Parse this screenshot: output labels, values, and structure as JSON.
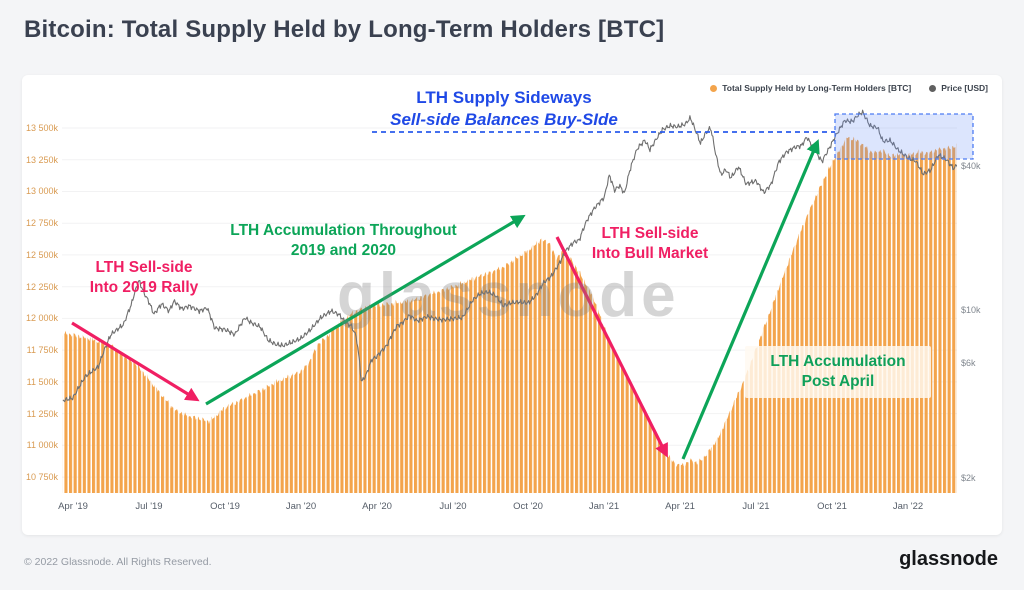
{
  "page": {
    "title": "Bitcoin: Total Supply Held by Long-Term Holders [BTC]",
    "footer_copyright": "© 2022 Glassnode. All Rights Reserved.",
    "footer_brand": "glassnode",
    "watermark": "glassnode"
  },
  "legend": {
    "items": [
      {
        "label": "Total Supply Held by Long-Term Holders [BTC]",
        "color": "#F3A44C"
      },
      {
        "label": "Price [USD]",
        "color": "#606060"
      }
    ]
  },
  "annotations": {
    "sideways_title": "LTH Supply Sideways",
    "sideways_sub": "Sell-side Balances Buy-SIde",
    "sell_2019_line1": "LTH Sell-side",
    "sell_2019_line2": "Into 2019 Rally",
    "accum_2019_line1": "LTH Accumulation Throughout",
    "accum_2019_line2": "2019 and 2020",
    "sell_bull_line1": "LTH Sell-side",
    "sell_bull_line2": "Into Bull Market",
    "accum_post_line1": "LTH Accumulation",
    "accum_post_line2": "Post April"
  },
  "colors": {
    "supply_orange": "#F3A44C",
    "price_gray": "#6F6F6F",
    "annotation_pink": "#F01F63",
    "annotation_green": "#0CA558",
    "annotation_blue": "#1F49E6",
    "left_axis_label": "#D99B52",
    "grid": "#F2F2F3"
  },
  "chart_data": {
    "type": "area",
    "title": "Bitcoin: Total Supply Held by Long-Term Holders [BTC]",
    "grid": "horizontal-faint",
    "legend_position": "top-right",
    "x_axis": {
      "unit": "months offset from Apr 2019",
      "tick_labels": [
        "Apr '19",
        "Jul '19",
        "Oct '19",
        "Jan '20",
        "Apr '20",
        "Jul '20",
        "Oct '20",
        "Jan '21",
        "Apr '21",
        "Jul '21",
        "Oct '21",
        "Jan '22"
      ],
      "tick_months": [
        0,
        3,
        6,
        9,
        12,
        15,
        18,
        21,
        24,
        27,
        30,
        33
      ]
    },
    "left_axis": {
      "label": "Total Supply Held by Long-Term Holders [BTC]",
      "unit": "thousand BTC",
      "scale": "linear",
      "tick_labels": [
        "13 500k",
        "13 250k",
        "13 000k",
        "12 750k",
        "12 500k",
        "12 250k",
        "12 000k",
        "11 750k",
        "11 500k",
        "11 250k",
        "11 000k",
        "10 750k"
      ],
      "tick_values": [
        13500,
        13250,
        13000,
        12750,
        12500,
        12250,
        12000,
        11750,
        11500,
        11250,
        11000,
        10750
      ],
      "ylim": [
        10600,
        13650
      ]
    },
    "right_axis": {
      "label": "Price [USD]",
      "unit": "USD",
      "scale": "log",
      "tick_labels": [
        "$40k",
        "$10k",
        "$6k",
        "$2k"
      ],
      "tick_values": [
        40000,
        10000,
        6000,
        2000
      ],
      "ylim": [
        1800,
        80000
      ]
    },
    "series": [
      {
        "name": "Total Supply Held by Long-Term Holders [BTC]",
        "type": "bar-area",
        "axis": "left",
        "color": "#F3A44C",
        "points": [
          [
            -0.4,
            11880
          ],
          [
            0,
            11870
          ],
          [
            0.7,
            11840
          ],
          [
            1,
            11820
          ],
          [
            1.5,
            11790
          ],
          [
            2,
            11700
          ],
          [
            2.5,
            11640
          ],
          [
            3,
            11520
          ],
          [
            3.5,
            11400
          ],
          [
            4,
            11280
          ],
          [
            4.5,
            11230
          ],
          [
            5,
            11210
          ],
          [
            5.4,
            11190
          ],
          [
            6,
            11300
          ],
          [
            6.5,
            11340
          ],
          [
            7,
            11390
          ],
          [
            7.5,
            11440
          ],
          [
            8,
            11500
          ],
          [
            8.5,
            11540
          ],
          [
            9,
            11580
          ],
          [
            9.3,
            11640
          ],
          [
            9.7,
            11800
          ],
          [
            10,
            11850
          ],
          [
            10.5,
            11960
          ],
          [
            11,
            12040
          ],
          [
            11.5,
            12080
          ],
          [
            12,
            12100
          ],
          [
            12.5,
            12115
          ],
          [
            13,
            12130
          ],
          [
            13.5,
            12150
          ],
          [
            14,
            12180
          ],
          [
            14.5,
            12210
          ],
          [
            15,
            12250
          ],
          [
            15.5,
            12290
          ],
          [
            16,
            12330
          ],
          [
            16.5,
            12360
          ],
          [
            17,
            12400
          ],
          [
            17.5,
            12470
          ],
          [
            18,
            12540
          ],
          [
            18.5,
            12620
          ],
          [
            18.8,
            12600
          ],
          [
            19.1,
            12470
          ],
          [
            19.4,
            12540
          ],
          [
            19.8,
            12430
          ],
          [
            20.2,
            12300
          ],
          [
            20.6,
            12150
          ],
          [
            21,
            11930
          ],
          [
            21.5,
            11700
          ],
          [
            22,
            11480
          ],
          [
            22.5,
            11300
          ],
          [
            23,
            11120
          ],
          [
            23.4,
            10950
          ],
          [
            23.8,
            10850
          ],
          [
            24.1,
            10840
          ],
          [
            24.4,
            10880
          ],
          [
            24.7,
            10860
          ],
          [
            25,
            10920
          ],
          [
            25.5,
            11060
          ],
          [
            26,
            11280
          ],
          [
            26.5,
            11500
          ],
          [
            27,
            11760
          ],
          [
            27.5,
            12030
          ],
          [
            28,
            12300
          ],
          [
            28.5,
            12560
          ],
          [
            29,
            12800
          ],
          [
            29.5,
            13020
          ],
          [
            30,
            13230
          ],
          [
            30.3,
            13330
          ],
          [
            30.6,
            13430
          ],
          [
            31,
            13400
          ],
          [
            31.3,
            13350
          ],
          [
            31.6,
            13300
          ],
          [
            32,
            13320
          ],
          [
            32.3,
            13280
          ],
          [
            32.7,
            13300
          ],
          [
            33,
            13290
          ],
          [
            33.4,
            13310
          ],
          [
            33.8,
            13300
          ],
          [
            34.2,
            13330
          ],
          [
            34.6,
            13340
          ],
          [
            34.95,
            13360
          ]
        ]
      },
      {
        "name": "Price [USD]",
        "type": "line",
        "axis": "right",
        "color": "#6F6F6F",
        "points": [
          [
            -0.4,
            4200
          ],
          [
            0,
            4300
          ],
          [
            0.5,
            5300
          ],
          [
            1,
            5800
          ],
          [
            1.5,
            7900
          ],
          [
            2,
            8700
          ],
          [
            2.3,
            10500
          ],
          [
            2.6,
            13300
          ],
          [
            2.8,
            11800
          ],
          [
            3,
            10800
          ],
          [
            3.2,
            9600
          ],
          [
            3.5,
            10600
          ],
          [
            3.8,
            9900
          ],
          [
            4,
            10900
          ],
          [
            4.3,
            10100
          ],
          [
            4.6,
            10400
          ],
          [
            5,
            9900
          ],
          [
            5.3,
            10200
          ],
          [
            5.6,
            8400
          ],
          [
            6,
            8300
          ],
          [
            6.4,
            7900
          ],
          [
            6.8,
            9300
          ],
          [
            7,
            8900
          ],
          [
            7.4,
            8500
          ],
          [
            7.7,
            7500
          ],
          [
            8,
            7200
          ],
          [
            8.3,
            7100
          ],
          [
            8.6,
            7300
          ],
          [
            9,
            7600
          ],
          [
            9.4,
            8300
          ],
          [
            9.8,
            9300
          ],
          [
            10.2,
            9900
          ],
          [
            10.5,
            9600
          ],
          [
            10.8,
            8800
          ],
          [
            11,
            8600
          ],
          [
            11.2,
            7700
          ],
          [
            11.4,
            5000
          ],
          [
            11.6,
            5400
          ],
          [
            11.8,
            6200
          ],
          [
            12,
            6400
          ],
          [
            12.4,
            7100
          ],
          [
            12.8,
            8600
          ],
          [
            13,
            8800
          ],
          [
            13.3,
            9500
          ],
          [
            13.6,
            9000
          ],
          [
            14,
            9400
          ],
          [
            14.3,
            9200
          ],
          [
            14.6,
            9100
          ],
          [
            15,
            9200
          ],
          [
            15.4,
            9300
          ],
          [
            15.8,
            11000
          ],
          [
            16.1,
            11700
          ],
          [
            16.4,
            11900
          ],
          [
            16.7,
            11500
          ],
          [
            17,
            10400
          ],
          [
            17.3,
            10700
          ],
          [
            17.6,
            10800
          ],
          [
            18,
            10700
          ],
          [
            18.3,
            11500
          ],
          [
            18.6,
            13000
          ],
          [
            18.9,
            13800
          ],
          [
            19.2,
            15500
          ],
          [
            19.5,
            17800
          ],
          [
            19.8,
            19200
          ],
          [
            20,
            19500
          ],
          [
            20.3,
            23500
          ],
          [
            20.6,
            26500
          ],
          [
            21,
            29500
          ],
          [
            21.2,
            36500
          ],
          [
            21.4,
            31500
          ],
          [
            21.6,
            33000
          ],
          [
            21.8,
            30500
          ],
          [
            22,
            38000
          ],
          [
            22.3,
            47000
          ],
          [
            22.6,
            51000
          ],
          [
            22.8,
            46500
          ],
          [
            23,
            50500
          ],
          [
            23.3,
            56500
          ],
          [
            23.6,
            58500
          ],
          [
            23.9,
            58000
          ],
          [
            24.2,
            59500
          ],
          [
            24.4,
            63200
          ],
          [
            24.6,
            56000
          ],
          [
            24.8,
            49500
          ],
          [
            25,
            54500
          ],
          [
            25.2,
            57500
          ],
          [
            25.4,
            44500
          ],
          [
            25.6,
            36500
          ],
          [
            25.8,
            38500
          ],
          [
            26,
            35500
          ],
          [
            26.3,
            39500
          ],
          [
            26.6,
            33500
          ],
          [
            27,
            34500
          ],
          [
            27.3,
            30800
          ],
          [
            27.6,
            33500
          ],
          [
            27.9,
            41500
          ],
          [
            28.2,
            45500
          ],
          [
            28.5,
            47500
          ],
          [
            28.8,
            48500
          ],
          [
            29,
            52500
          ],
          [
            29.3,
            46500
          ],
          [
            29.6,
            41500
          ],
          [
            29.9,
            47500
          ],
          [
            30.2,
            54500
          ],
          [
            30.5,
            61500
          ],
          [
            30.8,
            61000
          ],
          [
            31,
            64500
          ],
          [
            31.2,
            66800
          ],
          [
            31.5,
            58500
          ],
          [
            31.8,
            57500
          ],
          [
            32,
            50500
          ],
          [
            32.3,
            50800
          ],
          [
            32.6,
            46500
          ],
          [
            33,
            43000
          ],
          [
            33.3,
            41800
          ],
          [
            33.6,
            36800
          ],
          [
            33.9,
            38300
          ],
          [
            34.2,
            44300
          ],
          [
            34.5,
            42500
          ],
          [
            34.8,
            38800
          ],
          [
            34.95,
            40300
          ]
        ]
      }
    ]
  }
}
